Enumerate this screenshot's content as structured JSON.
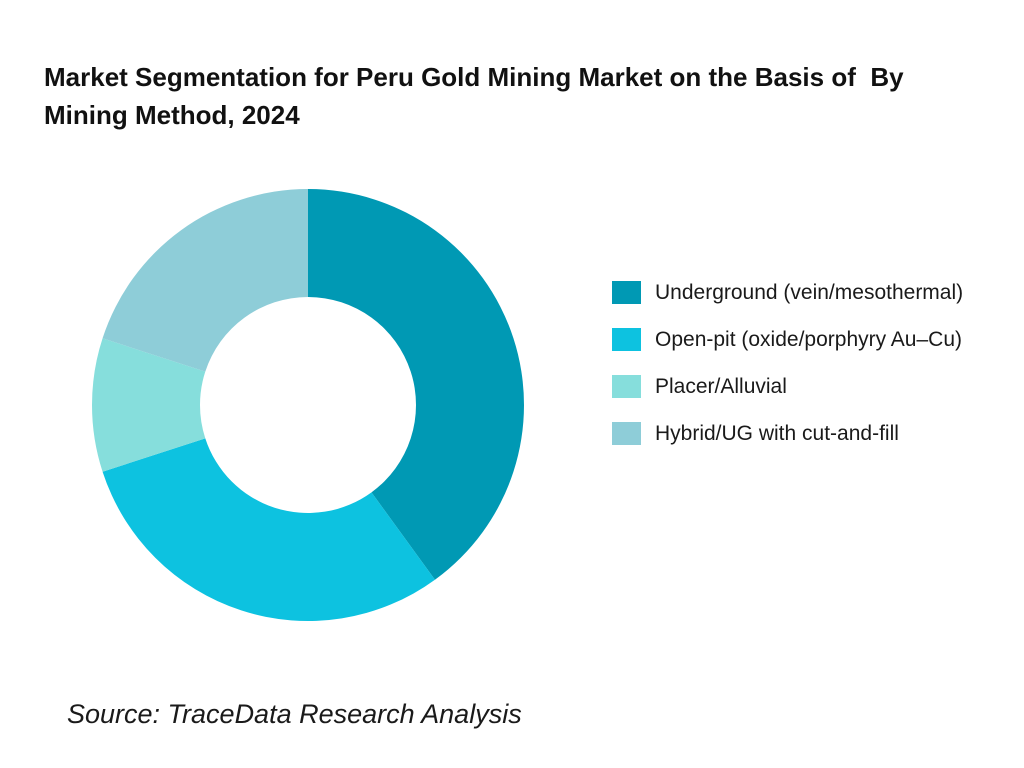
{
  "chart_data": {
    "type": "pie",
    "title": "Market Segmentation for Peru Gold Mining Market on the Basis of  By Mining Method, 2024",
    "donut": true,
    "categories": [
      "Underground (vein/mesothermal)",
      "Open-pit (oxide/porphyry Au–Cu)",
      "Placer/Alluvial",
      "Hybrid/UG with cut-and-fill"
    ],
    "values": [
      40,
      30,
      10,
      20
    ],
    "colors": [
      "#0099B4",
      "#0DC2E0",
      "#86DEDC",
      "#8ECDD8"
    ],
    "legend_position": "right",
    "start_angle_deg": 0,
    "direction": "clockwise"
  },
  "source": "Source: TraceData Research Analysis"
}
